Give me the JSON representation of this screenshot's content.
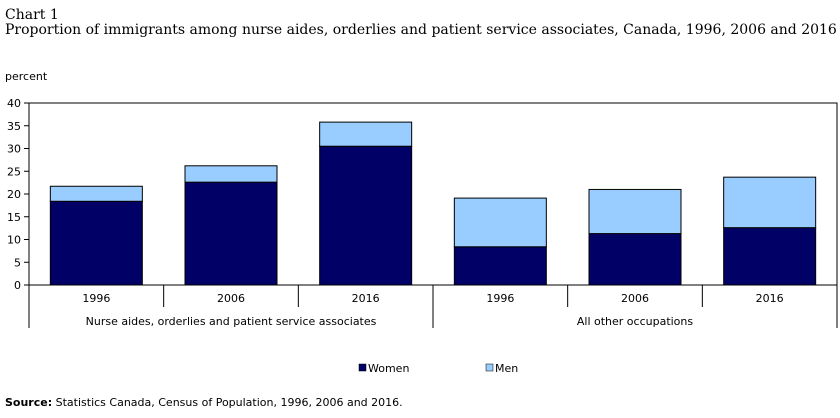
{
  "header": {
    "chart_label": "Chart 1",
    "title": "Proportion of immigrants among nurse aides, orderlies and patient service associates, Canada, 1996, 2006 and 2016"
  },
  "source": {
    "label": "Source:",
    "text": "Statistics Canada, Census of Population, 1996, 2006 and 2016."
  },
  "colors": {
    "women": "#000066",
    "men": "#99ccff"
  },
  "chart_data": {
    "type": "bar",
    "stacked": true,
    "title": "Proportion of immigrants among nurse aides, orderlies and patient service associates, Canada, 1996, 2006 and 2016",
    "ylabel": "percent",
    "ylim": [
      0,
      40
    ],
    "yticks": [
      0,
      5,
      10,
      15,
      20,
      25,
      30,
      35,
      40
    ],
    "grid": false,
    "legend_position": "bottom",
    "categories": [
      "1996",
      "2006",
      "2016",
      "1996",
      "2006",
      "2016"
    ],
    "groups": [
      {
        "label": "Nurse aides, orderlies and patient service associates",
        "categories": [
          "1996",
          "2006",
          "2016"
        ]
      },
      {
        "label": "All other occupations",
        "categories": [
          "1996",
          "2006",
          "2016"
        ]
      }
    ],
    "series": [
      {
        "name": "Women",
        "color": "#000066",
        "values": [
          18.4,
          22.6,
          30.5,
          8.4,
          11.3,
          12.6
        ]
      },
      {
        "name": "Men",
        "color": "#99ccff",
        "values": [
          3.3,
          3.6,
          5.3,
          10.7,
          9.7,
          11.1
        ]
      }
    ]
  }
}
